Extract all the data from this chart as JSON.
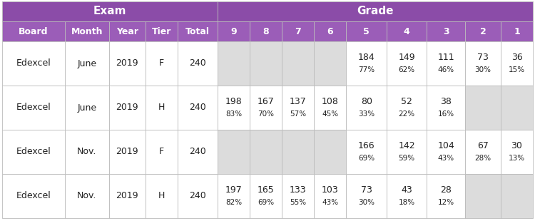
{
  "title_exam": "Exam",
  "title_grade": "Grade",
  "header_bg": "#8b4ca8",
  "header_text_color": "#ffffff",
  "subheader_bg": "#9b5db8",
  "subheader_text_color": "#ffffff",
  "row_bg_white": "#ffffff",
  "cell_na_color": "#dcdcdc",
  "grid_color": "#bbbbbb",
  "body_text_color": "#222222",
  "columns": [
    "Board",
    "Month",
    "Year",
    "Tier",
    "Total",
    "9",
    "8",
    "7",
    "6",
    "5",
    "4",
    "3",
    "2",
    "1"
  ],
  "col_widths_raw": [
    78,
    55,
    45,
    40,
    50,
    40,
    40,
    40,
    40,
    50,
    50,
    48,
    44,
    40
  ],
  "rows": [
    {
      "board": "Edexcel",
      "month": "June",
      "year": "2019",
      "tier": "F",
      "total": "240",
      "grades": [
        null,
        null,
        null,
        null,
        "184\n77%",
        "149\n62%",
        "111\n46%",
        "73\n30%",
        "36\n15%"
      ],
      "na_cols": [
        0,
        1,
        2,
        3
      ]
    },
    {
      "board": "Edexcel",
      "month": "June",
      "year": "2019",
      "tier": "H",
      "total": "240",
      "grades": [
        "198\n83%",
        "167\n70%",
        "137\n57%",
        "108\n45%",
        "80\n33%",
        "52\n22%",
        "38\n16%",
        null,
        null
      ],
      "na_cols": [
        7,
        8
      ]
    },
    {
      "board": "Edexcel",
      "month": "Nov.",
      "year": "2019",
      "tier": "F",
      "total": "240",
      "grades": [
        null,
        null,
        null,
        null,
        "166\n69%",
        "142\n59%",
        "104\n43%",
        "67\n28%",
        "30\n13%"
      ],
      "na_cols": [
        0,
        1,
        2,
        3
      ]
    },
    {
      "board": "Edexcel",
      "month": "Nov.",
      "year": "2019",
      "tier": "H",
      "total": "240",
      "grades": [
        "197\n82%",
        "165\n69%",
        "133\n55%",
        "103\n43%",
        "73\n30%",
        "43\n18%",
        "28\n12%",
        null,
        null
      ],
      "na_cols": [
        7,
        8
      ]
    }
  ]
}
